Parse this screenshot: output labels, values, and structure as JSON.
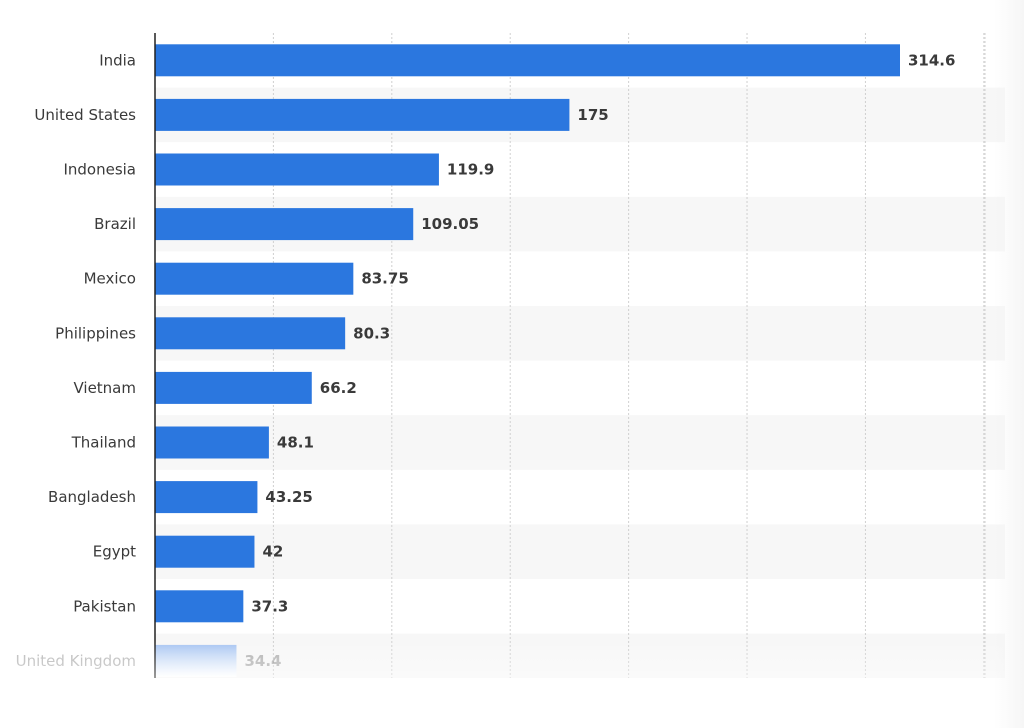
{
  "chart_data": {
    "type": "bar",
    "orientation": "horizontal",
    "categories": [
      "India",
      "United States",
      "Indonesia",
      "Brazil",
      "Mexico",
      "Philippines",
      "Vietnam",
      "Thailand",
      "Bangladesh",
      "Egypt",
      "Pakistan",
      "United Kingdom"
    ],
    "values": [
      314.6,
      175,
      119.9,
      109.05,
      83.75,
      80.3,
      66.2,
      48.1,
      43.25,
      42,
      37.3,
      34.4
    ],
    "value_labels": [
      "314.6",
      "175",
      "119.9",
      "109.05",
      "83.75",
      "80.3",
      "66.2",
      "48.1",
      "43.25",
      "42",
      "37.3",
      "34.4"
    ],
    "title": "",
    "xlabel": "",
    "ylabel": "",
    "xlim": [
      0,
      350
    ],
    "grid": true,
    "legend": "none",
    "colors": {
      "bar": "#2b77df",
      "bar_faded": "#a9c6f2",
      "stripe": "#f7f7f7",
      "grid": "#d0d0d0",
      "axis": "#222222",
      "label": "#3a3a3a"
    }
  }
}
